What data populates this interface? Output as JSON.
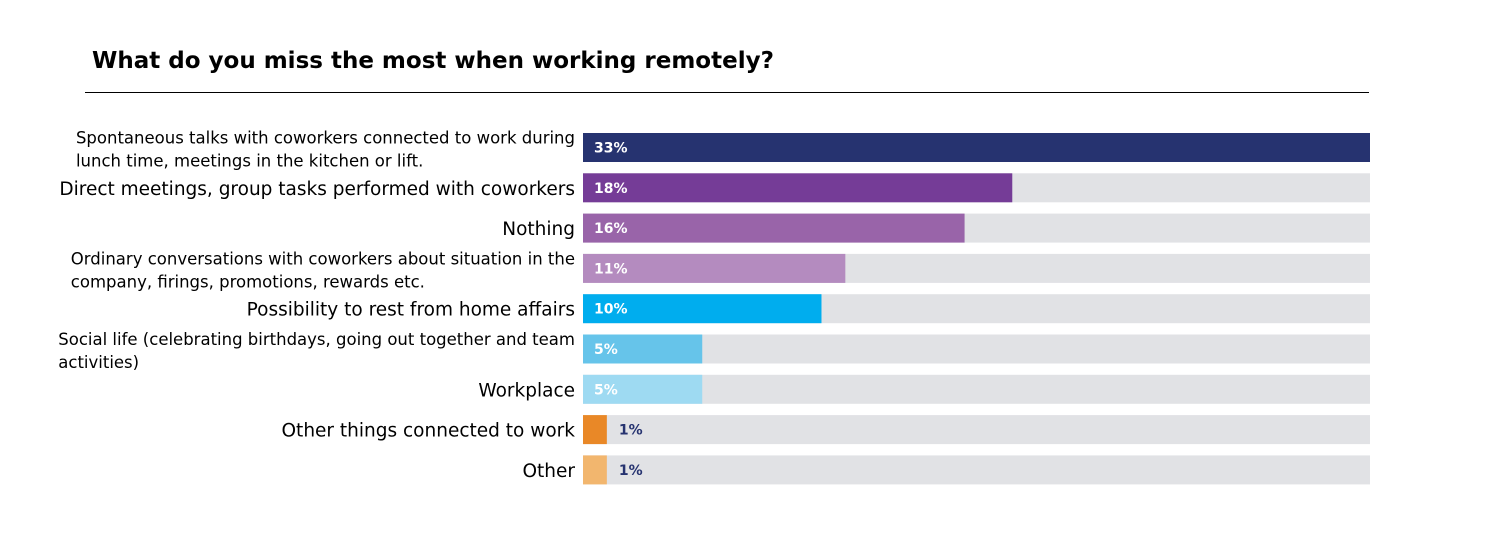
{
  "chart_data": {
    "type": "bar",
    "orientation": "horizontal",
    "title": "What do you miss the most when working remotely?",
    "xlim": [
      0,
      33
    ],
    "grid": false,
    "legend": "none",
    "track_color": "#e1e2e5",
    "categories": [
      {
        "lines": [
          "Spontaneous talks with coworkers connected to work during",
          "lunch time, meetings in the kitchen or lift."
        ]
      },
      {
        "lines": [
          "Direct meetings, group tasks performed with coworkers"
        ]
      },
      {
        "lines": [
          "Nothing"
        ]
      },
      {
        "lines": [
          "Ordinary conversations with coworkers about situation in the",
          "company, firings, promotions, rewards etc."
        ]
      },
      {
        "lines": [
          "Possibility to rest from home affairs"
        ]
      },
      {
        "lines": [
          "Social life (celebrating birthdays, going out together and team",
          "activities)"
        ]
      },
      {
        "lines": [
          "Workplace"
        ]
      },
      {
        "lines": [
          "Other things connected to work"
        ]
      },
      {
        "lines": [
          "Other"
        ]
      }
    ],
    "values": [
      33,
      18,
      16,
      11,
      10,
      5,
      5,
      1,
      1
    ],
    "value_labels": [
      "33%",
      "18%",
      "16%",
      "11%",
      "10%",
      "5%",
      "5%",
      "1%",
      "1%"
    ],
    "colors": [
      "#263370",
      "#753c97",
      "#9964a9",
      "#b48bbf",
      "#00adee",
      "#66c4ea",
      "#9edaf2",
      "#e98827",
      "#f2b66e"
    ],
    "label_colors": [
      "#ffffff",
      "#ffffff",
      "#ffffff",
      "#ffffff",
      "#ffffff",
      "#ffffff",
      "#ffffff",
      "#263370",
      "#263370"
    ]
  }
}
